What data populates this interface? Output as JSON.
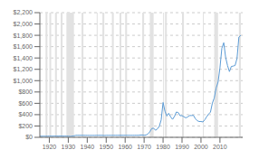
{
  "chart_data": {
    "type": "line",
    "x": [
      1915,
      1916,
      1917,
      1918,
      1919,
      1920,
      1921,
      1922,
      1923,
      1924,
      1925,
      1926,
      1927,
      1928,
      1929,
      1930,
      1931,
      1932,
      1933,
      1934,
      1935,
      1936,
      1937,
      1938,
      1939,
      1940,
      1941,
      1942,
      1943,
      1944,
      1945,
      1946,
      1947,
      1948,
      1949,
      1950,
      1951,
      1952,
      1953,
      1954,
      1955,
      1956,
      1957,
      1958,
      1959,
      1960,
      1961,
      1962,
      1963,
      1964,
      1965,
      1966,
      1967,
      1968,
      1969,
      1970,
      1971,
      1972,
      1973,
      1974,
      1975,
      1976,
      1977,
      1978,
      1979,
      1980,
      1981,
      1982,
      1983,
      1984,
      1985,
      1986,
      1987,
      1988,
      1989,
      1990,
      1991,
      1992,
      1993,
      1994,
      1995,
      1996,
      1997,
      1998,
      1999,
      2000,
      2001,
      2002,
      2003,
      2004,
      2005,
      2006,
      2007,
      2008,
      2009,
      2010,
      2011,
      2012,
      2013,
      2014,
      2015,
      2016,
      2017,
      2018,
      2019,
      2020,
      2021
    ],
    "values": [
      18.99,
      18.99,
      18.99,
      18.99,
      19.95,
      20.68,
      21.32,
      21.32,
      21.32,
      21.32,
      21.32,
      21.32,
      21.32,
      21.32,
      20.63,
      20.65,
      17.06,
      20.69,
      26.33,
      34.69,
      34.84,
      34.87,
      34.79,
      34.85,
      34.42,
      33.85,
      33.85,
      33.85,
      33.85,
      33.85,
      34.71,
      34.71,
      34.71,
      34.71,
      31.69,
      34.72,
      34.72,
      34.72,
      34.72,
      34.72,
      34.99,
      34.99,
      34.99,
      35.1,
      35.1,
      35.27,
      35.25,
      35.23,
      35.09,
      35.1,
      35.12,
      35.13,
      34.95,
      39.31,
      41.28,
      36.02,
      40.62,
      58.42,
      97.39,
      154.0,
      160.86,
      124.74,
      147.71,
      193.4,
      306.68,
      614.97,
      459.63,
      375.67,
      424.35,
      360.29,
      317.26,
      367.66,
      446.46,
      436.94,
      381.44,
      383.51,
      362.11,
      343.82,
      359.77,
      383.79,
      384.52,
      387.81,
      330.98,
      294.24,
      278.98,
      279.11,
      271.04,
      309.73,
      363.38,
      409.72,
      444.74,
      603.46,
      695.39,
      871.96,
      972.35,
      1224.53,
      1571.52,
      1668.98,
      1411.23,
      1266.4,
      1160.06,
      1250.74,
      1257.15,
      1268.93,
      1392.6,
      1769.64,
      1800.0
    ],
    "color": "#5b9bd5",
    "xlim": [
      1915,
      2022
    ],
    "ylim": [
      0,
      2200
    ],
    "xticks": [
      1920,
      1930,
      1940,
      1950,
      1960,
      1970,
      1980,
      1990,
      2000,
      2010
    ],
    "yticks": [
      {
        "value": 0,
        "label": "$0"
      },
      {
        "value": 200,
        "label": "$200"
      },
      {
        "value": 400,
        "label": "$400"
      },
      {
        "value": 600,
        "label": "$600"
      },
      {
        "value": 800,
        "label": "$800"
      },
      {
        "value": 1000,
        "label": "$1,000"
      },
      {
        "value": 1200,
        "label": "$1,200"
      },
      {
        "value": 1400,
        "label": "$1,400"
      },
      {
        "value": 1600,
        "label": "$1,600"
      },
      {
        "value": 1800,
        "label": "$1,800"
      },
      {
        "value": 2000,
        "label": "$2,000"
      },
      {
        "value": 2200,
        "label": "$2,200"
      }
    ],
    "grid": true,
    "recession_bands": {
      "color": "#e2e2e2",
      "ranges": [
        [
          1918,
          1919
        ],
        [
          1920,
          1921
        ],
        [
          1923,
          1924
        ],
        [
          1926,
          1927
        ],
        [
          1929,
          1933
        ],
        [
          1937,
          1938
        ],
        [
          1945,
          1945.5
        ],
        [
          1948,
          1949
        ],
        [
          1953,
          1954
        ],
        [
          1957,
          1958
        ],
        [
          1960,
          1961
        ],
        [
          1969,
          1970
        ],
        [
          1973,
          1975
        ],
        [
          1980,
          1980.5
        ],
        [
          1981,
          1982
        ],
        [
          1990,
          1991
        ],
        [
          2001,
          2001.5
        ],
        [
          2007,
          2009
        ],
        [
          2020,
          2021
        ]
      ]
    }
  }
}
